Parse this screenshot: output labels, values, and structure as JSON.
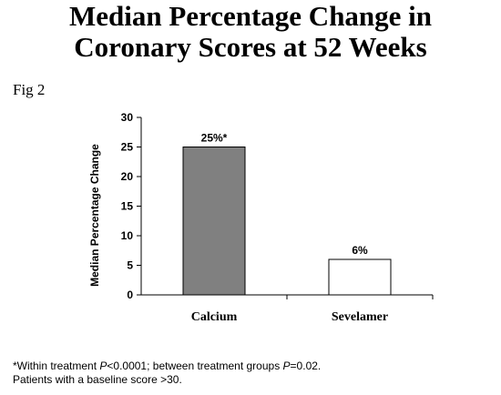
{
  "chart_data": {
    "type": "bar",
    "title": "Median Percentage Change in Coronary Scores at 52 Weeks",
    "title_lines": [
      "Median Percentage Change in",
      "Coronary Scores at 52 Weeks"
    ],
    "figure_label": "Fig 2",
    "categories": [
      "Calcium",
      "Sevelamer"
    ],
    "values": [
      25,
      6
    ],
    "data_labels": [
      "25%*",
      "6%"
    ],
    "bar_colors": [
      "#808080",
      "#ffffff"
    ],
    "bar_border_color": "#000000",
    "xlabel": "",
    "ylabel": "Median Percentage Change",
    "ylim": [
      0,
      30
    ],
    "yticks": [
      0,
      5,
      10,
      15,
      20,
      25,
      30
    ],
    "grid": false,
    "legend": "none"
  },
  "footnote": {
    "line1_prefix": "*Within treatment ",
    "line1_p1": "P",
    "line1_mid": "<0.0001; between treatment groups ",
    "line1_p2": "P",
    "line1_suffix": "=0.02.",
    "line2": "Patients with a baseline score >30."
  }
}
